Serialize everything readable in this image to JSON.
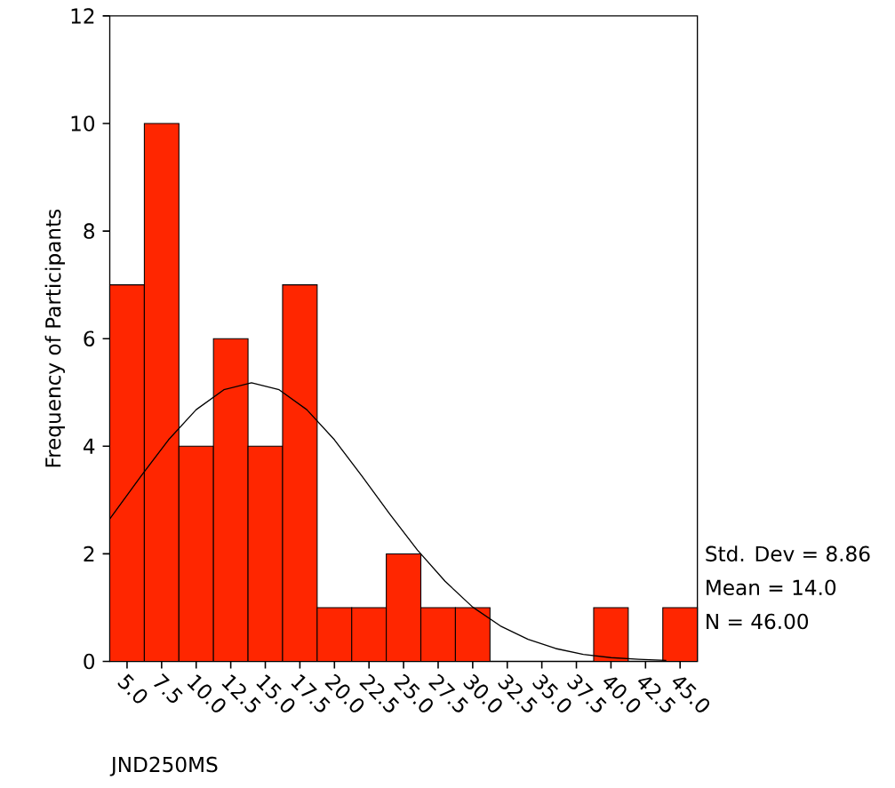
{
  "chart_data": {
    "type": "histogram",
    "xlabel": "JND250MS",
    "ylabel": "Frequency of Participants",
    "bins": [
      3.75,
      6.25,
      8.75,
      11.25,
      13.75,
      16.25,
      18.75,
      21.25,
      23.75,
      26.25,
      28.75,
      31.25,
      33.75,
      36.25,
      38.75,
      41.25,
      43.75,
      46.25
    ],
    "values": [
      7,
      10,
      4,
      6,
      4,
      7,
      1,
      1,
      2,
      1,
      1,
      0,
      0,
      0,
      1,
      0,
      1
    ],
    "color": "#ff2600",
    "series": [
      {
        "type": "line",
        "color": "#000000",
        "x": [
          3.75,
          6,
          8,
          10,
          12,
          14,
          16,
          18,
          20,
          22,
          24,
          26,
          28,
          30,
          32,
          34,
          36,
          38,
          40,
          42,
          44
        ],
        "values": [
          2.65,
          3.44,
          4.12,
          4.68,
          5.05,
          5.18,
          5.05,
          4.68,
          4.12,
          3.44,
          2.74,
          2.07,
          1.49,
          1.01,
          0.66,
          0.41,
          0.24,
          0.13,
          0.07,
          0.04,
          0.02
        ]
      }
    ],
    "xlim": [
      3.75,
      46.25
    ],
    "xticks": [
      {
        "value": 5,
        "label": "5.0"
      },
      {
        "value": 7.5,
        "label": "7.5"
      },
      {
        "value": 10,
        "label": "10.0"
      },
      {
        "value": 12.5,
        "label": "12.5"
      },
      {
        "value": 15,
        "label": "15.0"
      },
      {
        "value": 17.5,
        "label": "17.5"
      },
      {
        "value": 20,
        "label": "20.0"
      },
      {
        "value": 22.5,
        "label": "22.5"
      },
      {
        "value": 25,
        "label": "25.0"
      },
      {
        "value": 27.5,
        "label": "27.5"
      },
      {
        "value": 30,
        "label": "30.0"
      },
      {
        "value": 32.5,
        "label": "32.5"
      },
      {
        "value": 35,
        "label": "35.0"
      },
      {
        "value": 37.5,
        "label": "37.5"
      },
      {
        "value": 40,
        "label": "40.0"
      },
      {
        "value": 42.5,
        "label": "42.5"
      },
      {
        "value": 45,
        "label": "45.0"
      }
    ],
    "ylim": [
      0,
      12
    ],
    "yticks": [
      0,
      2,
      4,
      6,
      8,
      10,
      12
    ],
    "annotations": [
      "Std. Dev = 8.86",
      "Mean = 14.0",
      "N = 46.00"
    ]
  }
}
